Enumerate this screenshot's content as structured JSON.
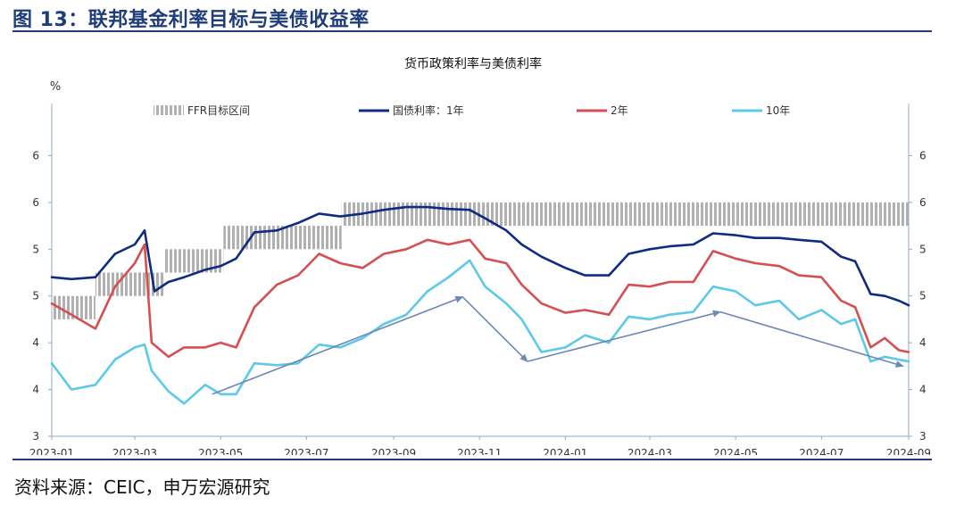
{
  "figure": {
    "title": "图 13：联邦基金利率目标与美债收益率",
    "source": "资料来源：CEIC，申万宏源研究"
  },
  "chart_data": {
    "type": "line",
    "title": "货币政策利率与美债利率",
    "ylabel": "%",
    "ylim": [
      3,
      6.5
    ],
    "left_tick_labels": [
      "3",
      "4",
      "4",
      "5",
      "5",
      "6",
      "6"
    ],
    "right_tick_labels": [
      "3",
      "4",
      "4",
      "5",
      "5",
      "6",
      "6"
    ],
    "x_ticks": [
      "2023-01",
      "2023-03",
      "2023-05",
      "2023-07",
      "2023-09",
      "2023-11",
      "2024-01",
      "2024-03",
      "2024-05",
      "2024-07",
      "2024-09"
    ],
    "x_domain": [
      "2023-01-01",
      "2024-09-01"
    ],
    "legend_position": "top",
    "legend": [
      "FFR目标区间",
      "国债利率：1年",
      "2年",
      "10年"
    ],
    "colors": {
      "ffr": "#b0b0b0",
      "y1": "#0d2c82",
      "y2": "#d64f50",
      "y10": "#5cc8ea",
      "arrow": "#6c88b4"
    },
    "ffr_band": [
      {
        "from": "2023-01-01",
        "to": "2023-02-01",
        "low": 4.25,
        "high": 4.5
      },
      {
        "from": "2023-02-01",
        "to": "2023-03-22",
        "low": 4.5,
        "high": 4.75
      },
      {
        "from": "2023-03-22",
        "to": "2023-05-03",
        "low": 4.75,
        "high": 5.0
      },
      {
        "from": "2023-05-03",
        "to": "2023-07-26",
        "low": 5.0,
        "high": 5.25
      },
      {
        "from": "2023-07-26",
        "to": "2024-09-01",
        "low": 5.25,
        "high": 5.5
      }
    ],
    "series": [
      {
        "name": "国债利率：1年",
        "points": [
          [
            "2023-01-01",
            4.7
          ],
          [
            "2023-01-15",
            4.68
          ],
          [
            "2023-02-01",
            4.7
          ],
          [
            "2023-02-15",
            4.95
          ],
          [
            "2023-03-01",
            5.05
          ],
          [
            "2023-03-08",
            5.2
          ],
          [
            "2023-03-15",
            4.55
          ],
          [
            "2023-03-25",
            4.65
          ],
          [
            "2023-04-05",
            4.7
          ],
          [
            "2023-04-20",
            4.78
          ],
          [
            "2023-05-01",
            4.82
          ],
          [
            "2023-05-12",
            4.9
          ],
          [
            "2023-05-25",
            5.18
          ],
          [
            "2023-06-10",
            5.2
          ],
          [
            "2023-06-25",
            5.28
          ],
          [
            "2023-07-10",
            5.38
          ],
          [
            "2023-07-25",
            5.35
          ],
          [
            "2023-08-10",
            5.38
          ],
          [
            "2023-08-25",
            5.42
          ],
          [
            "2023-09-10",
            5.45
          ],
          [
            "2023-09-25",
            5.45
          ],
          [
            "2023-10-10",
            5.43
          ],
          [
            "2023-10-25",
            5.42
          ],
          [
            "2023-11-05",
            5.33
          ],
          [
            "2023-11-20",
            5.2
          ],
          [
            "2023-12-01",
            5.05
          ],
          [
            "2023-12-15",
            4.92
          ],
          [
            "2024-01-01",
            4.8
          ],
          [
            "2024-01-15",
            4.72
          ],
          [
            "2024-02-01",
            4.72
          ],
          [
            "2024-02-15",
            4.95
          ],
          [
            "2024-03-01",
            5.0
          ],
          [
            "2024-03-15",
            5.03
          ],
          [
            "2024-04-01",
            5.05
          ],
          [
            "2024-04-15",
            5.17
          ],
          [
            "2024-05-01",
            5.15
          ],
          [
            "2024-05-15",
            5.12
          ],
          [
            "2024-06-01",
            5.12
          ],
          [
            "2024-06-15",
            5.1
          ],
          [
            "2024-07-01",
            5.08
          ],
          [
            "2024-07-15",
            4.92
          ],
          [
            "2024-07-25",
            4.87
          ],
          [
            "2024-08-05",
            4.52
          ],
          [
            "2024-08-15",
            4.5
          ],
          [
            "2024-08-25",
            4.45
          ],
          [
            "2024-09-01",
            4.4
          ]
        ]
      },
      {
        "name": "2年",
        "points": [
          [
            "2023-01-01",
            4.42
          ],
          [
            "2023-01-15",
            4.3
          ],
          [
            "2023-02-01",
            4.15
          ],
          [
            "2023-02-15",
            4.6
          ],
          [
            "2023-03-01",
            4.85
          ],
          [
            "2023-03-08",
            5.05
          ],
          [
            "2023-03-13",
            4.0
          ],
          [
            "2023-03-25",
            3.85
          ],
          [
            "2023-04-05",
            3.95
          ],
          [
            "2023-04-20",
            3.95
          ],
          [
            "2023-05-01",
            4.0
          ],
          [
            "2023-05-12",
            3.95
          ],
          [
            "2023-05-25",
            4.38
          ],
          [
            "2023-06-10",
            4.62
          ],
          [
            "2023-06-25",
            4.72
          ],
          [
            "2023-07-10",
            4.95
          ],
          [
            "2023-07-25",
            4.85
          ],
          [
            "2023-08-10",
            4.8
          ],
          [
            "2023-08-25",
            4.95
          ],
          [
            "2023-09-10",
            5.0
          ],
          [
            "2023-09-25",
            5.1
          ],
          [
            "2023-10-10",
            5.05
          ],
          [
            "2023-10-25",
            5.1
          ],
          [
            "2023-11-05",
            4.9
          ],
          [
            "2023-11-20",
            4.85
          ],
          [
            "2023-12-01",
            4.62
          ],
          [
            "2023-12-15",
            4.42
          ],
          [
            "2024-01-01",
            4.32
          ],
          [
            "2024-01-15",
            4.35
          ],
          [
            "2024-02-01",
            4.3
          ],
          [
            "2024-02-15",
            4.62
          ],
          [
            "2024-03-01",
            4.6
          ],
          [
            "2024-03-15",
            4.65
          ],
          [
            "2024-04-01",
            4.65
          ],
          [
            "2024-04-15",
            4.98
          ],
          [
            "2024-05-01",
            4.9
          ],
          [
            "2024-05-15",
            4.85
          ],
          [
            "2024-06-01",
            4.82
          ],
          [
            "2024-06-15",
            4.72
          ],
          [
            "2024-07-01",
            4.7
          ],
          [
            "2024-07-15",
            4.45
          ],
          [
            "2024-07-25",
            4.38
          ],
          [
            "2024-08-05",
            3.95
          ],
          [
            "2024-08-15",
            4.05
          ],
          [
            "2024-08-25",
            3.92
          ],
          [
            "2024-09-01",
            3.9
          ]
        ]
      },
      {
        "name": "10年",
        "points": [
          [
            "2023-01-01",
            3.78
          ],
          [
            "2023-01-15",
            3.5
          ],
          [
            "2023-02-01",
            3.55
          ],
          [
            "2023-02-15",
            3.82
          ],
          [
            "2023-03-01",
            3.95
          ],
          [
            "2023-03-08",
            3.98
          ],
          [
            "2023-03-13",
            3.7
          ],
          [
            "2023-03-25",
            3.48
          ],
          [
            "2023-04-05",
            3.35
          ],
          [
            "2023-04-20",
            3.55
          ],
          [
            "2023-05-01",
            3.45
          ],
          [
            "2023-05-12",
            3.45
          ],
          [
            "2023-05-25",
            3.78
          ],
          [
            "2023-06-10",
            3.76
          ],
          [
            "2023-06-25",
            3.78
          ],
          [
            "2023-07-10",
            3.98
          ],
          [
            "2023-07-25",
            3.95
          ],
          [
            "2023-08-10",
            4.05
          ],
          [
            "2023-08-25",
            4.2
          ],
          [
            "2023-09-10",
            4.3
          ],
          [
            "2023-09-25",
            4.55
          ],
          [
            "2023-10-10",
            4.7
          ],
          [
            "2023-10-25",
            4.88
          ],
          [
            "2023-11-05",
            4.6
          ],
          [
            "2023-11-20",
            4.42
          ],
          [
            "2023-12-01",
            4.25
          ],
          [
            "2023-12-15",
            3.9
          ],
          [
            "2024-01-01",
            3.95
          ],
          [
            "2024-01-15",
            4.08
          ],
          [
            "2024-02-01",
            4.0
          ],
          [
            "2024-02-15",
            4.28
          ],
          [
            "2024-03-01",
            4.25
          ],
          [
            "2024-03-15",
            4.3
          ],
          [
            "2024-04-01",
            4.33
          ],
          [
            "2024-04-15",
            4.6
          ],
          [
            "2024-05-01",
            4.55
          ],
          [
            "2024-05-15",
            4.4
          ],
          [
            "2024-06-01",
            4.45
          ],
          [
            "2024-06-15",
            4.25
          ],
          [
            "2024-07-01",
            4.35
          ],
          [
            "2024-07-15",
            4.2
          ],
          [
            "2024-07-25",
            4.25
          ],
          [
            "2024-08-05",
            3.8
          ],
          [
            "2024-08-15",
            3.85
          ],
          [
            "2024-08-25",
            3.82
          ],
          [
            "2024-09-01",
            3.8
          ]
        ]
      }
    ],
    "annotation_arrows": [
      {
        "from": [
          "2023-04-25",
          3.45
        ],
        "to": [
          "2023-10-20",
          4.49
        ]
      },
      {
        "from": [
          "2023-10-20",
          4.49
        ],
        "to": [
          "2023-12-05",
          3.8
        ]
      },
      {
        "from": [
          "2023-12-05",
          3.8
        ],
        "to": [
          "2024-04-20",
          4.33
        ]
      },
      {
        "from": [
          "2024-04-20",
          4.33
        ],
        "to": [
          "2024-08-28",
          3.75
        ]
      }
    ]
  }
}
